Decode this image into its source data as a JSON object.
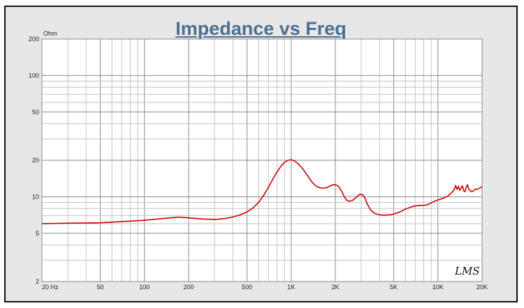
{
  "chart_data": {
    "type": "line",
    "title": "Impedance vs Freq",
    "xlabel": "",
    "ylabel": "",
    "y_unit": "Ohm",
    "x_scale": "log",
    "y_scale": "log",
    "xlim": [
      20,
      20000
    ],
    "ylim": [
      2,
      200
    ],
    "grid": true,
    "x_ticks": [
      {
        "value": 20,
        "label": "20  Hz"
      },
      {
        "value": 50,
        "label": "50"
      },
      {
        "value": 100,
        "label": "100"
      },
      {
        "value": 200,
        "label": "200"
      },
      {
        "value": 500,
        "label": "500"
      },
      {
        "value": 1000,
        "label": "1K"
      },
      {
        "value": 2000,
        "label": "2K"
      },
      {
        "value": 5000,
        "label": "5K"
      },
      {
        "value": 10000,
        "label": "10K"
      },
      {
        "value": 20000,
        "label": "20K"
      }
    ],
    "y_ticks": [
      {
        "value": 200,
        "label": "200"
      },
      {
        "value": 100,
        "label": "100"
      },
      {
        "value": 50,
        "label": "50"
      },
      {
        "value": 20,
        "label": "20"
      },
      {
        "value": 10,
        "label": "10"
      },
      {
        "value": 5,
        "label": "5"
      },
      {
        "value": 2,
        "label": "2"
      }
    ],
    "series": [
      {
        "color": "#cc0000",
        "x": [
          20,
          30,
          50,
          80,
          100,
          130,
          170,
          200,
          250,
          300,
          350,
          400,
          450,
          500,
          550,
          600,
          650,
          700,
          750,
          800,
          850,
          900,
          950,
          1000,
          1050,
          1100,
          1200,
          1300,
          1400,
          1500,
          1600,
          1700,
          1800,
          1900,
          2000,
          2100,
          2200,
          2300,
          2400,
          2500,
          2600,
          2700,
          2800,
          2900,
          3000,
          3100,
          3200,
          3300,
          3500,
          3700,
          4000,
          4300,
          4700,
          5000,
          5500,
          6000,
          6500,
          7000,
          7500,
          8000,
          8500,
          9000,
          9500,
          10000,
          10500,
          11000,
          11500,
          12000,
          12500,
          13000,
          13200,
          13500,
          13800,
          14100,
          14400,
          14700,
          15000,
          15300,
          15600,
          15900,
          16200,
          16500,
          17000,
          17500,
          18000,
          18500,
          19000,
          19500,
          20000
        ],
        "y": [
          6.0,
          6.05,
          6.1,
          6.3,
          6.4,
          6.6,
          6.8,
          6.7,
          6.55,
          6.5,
          6.6,
          6.8,
          7.1,
          7.5,
          8.1,
          9.0,
          10.3,
          12.0,
          14.0,
          16.0,
          17.8,
          19.2,
          20.0,
          20.2,
          19.8,
          19.0,
          17.0,
          14.8,
          13.0,
          12.1,
          11.8,
          11.8,
          12.1,
          12.5,
          12.6,
          12.2,
          11.2,
          10.0,
          9.3,
          9.2,
          9.3,
          9.6,
          10.0,
          10.4,
          10.5,
          10.3,
          9.6,
          8.7,
          7.7,
          7.3,
          7.1,
          7.05,
          7.1,
          7.2,
          7.5,
          7.9,
          8.2,
          8.4,
          8.5,
          8.5,
          8.6,
          8.9,
          9.2,
          9.4,
          9.6,
          9.8,
          10.0,
          10.4,
          10.9,
          11.6,
          12.4,
          11.5,
          12.2,
          11.3,
          11.8,
          12.3,
          11.2,
          11.0,
          12.0,
          12.6,
          11.6,
          11.3,
          11.0,
          11.2,
          11.6,
          11.5,
          11.7,
          11.9,
          12.1
        ]
      }
    ]
  },
  "logo_text": "LMS"
}
